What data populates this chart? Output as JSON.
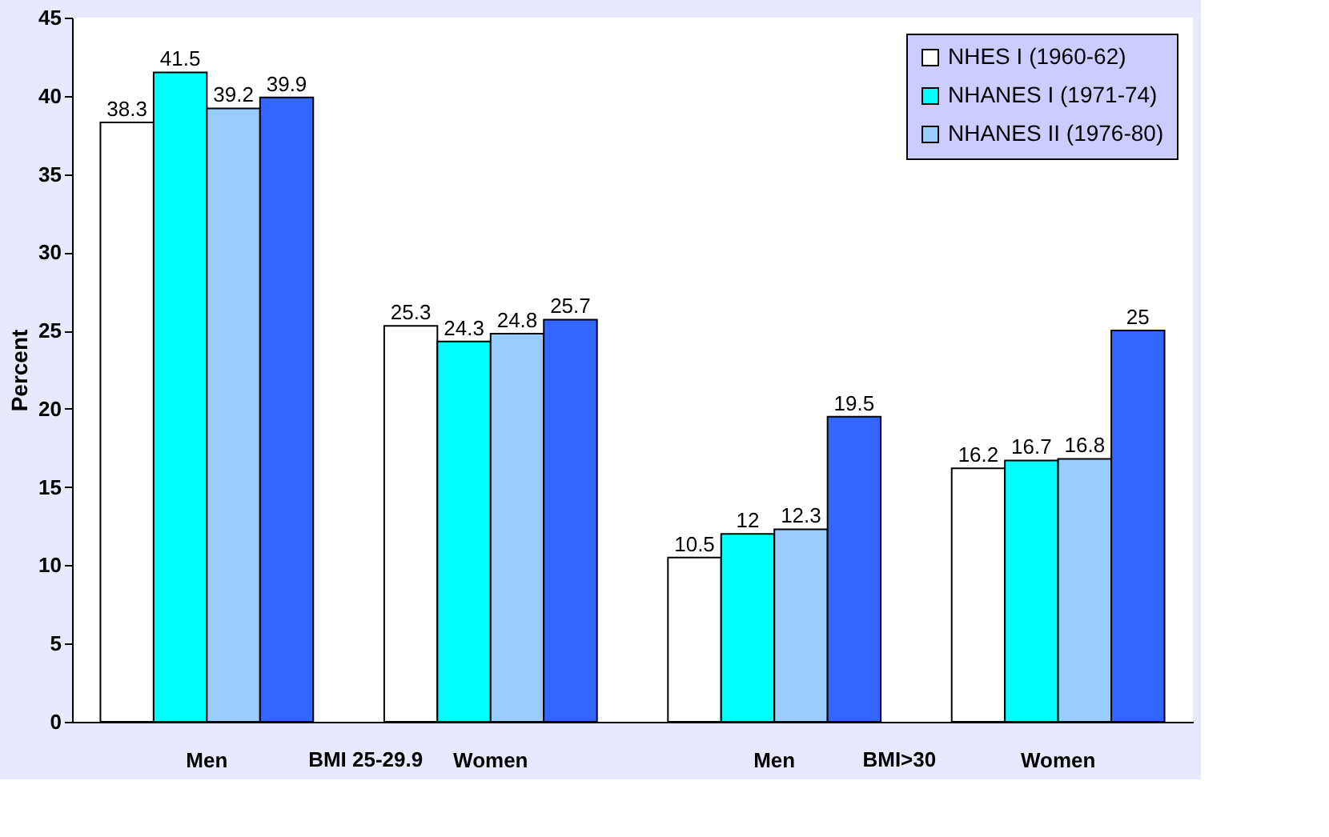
{
  "chart_data": {
    "type": "bar",
    "ylabel": "Percent",
    "categories": [
      "Men",
      "Women",
      "Men",
      "Women"
    ],
    "series": [
      {
        "name": "NHES I (1960-62)",
        "color": "#ffffff",
        "values": [
          38.3,
          25.3,
          10.5,
          16.2
        ]
      },
      {
        "name": "NHANES I (1971-74)",
        "color": "#00ffff",
        "values": [
          41.5,
          24.3,
          12,
          16.7
        ]
      },
      {
        "name": "NHANES II (1976-80)",
        "color": "#99ccff",
        "values": [
          39.2,
          24.8,
          12.3,
          16.8
        ]
      },
      {
        "color": "#3366ff",
        "values": [
          39.9,
          25.7,
          19.5,
          25
        ]
      }
    ],
    "annotations": [
      "BMI 25-29.9",
      "BMI>30"
    ],
    "ylim": [
      0,
      45
    ],
    "yticks": [
      0,
      5,
      10,
      15,
      20,
      25,
      30,
      35,
      40,
      45
    ],
    "data_labels": true,
    "grid": false,
    "legend": "top right"
  }
}
